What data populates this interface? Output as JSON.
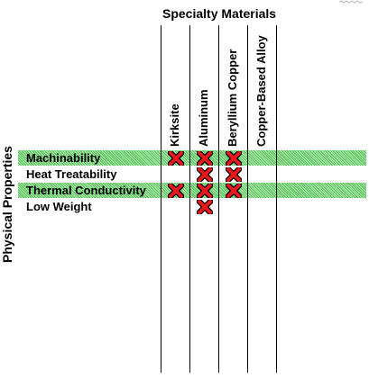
{
  "title": "Specialty Materials",
  "side_title": "Physical Properties",
  "columns": [
    {
      "label": "Kirksite"
    },
    {
      "label": "Aluminum"
    },
    {
      "label": "Beryllium Copper"
    },
    {
      "label": "Copper-Based Alloy"
    }
  ],
  "rows": [
    {
      "label": "Machinability",
      "highlight": true
    },
    {
      "label": "Heat Treatability",
      "highlight": false
    },
    {
      "label": "Thermal Conductivity",
      "highlight": true
    },
    {
      "label": "Low Weight",
      "highlight": false
    }
  ],
  "marks": [
    [
      true,
      true,
      true,
      false
    ],
    [
      false,
      true,
      true,
      false
    ],
    [
      true,
      true,
      true,
      false
    ],
    [
      false,
      true,
      false,
      false
    ]
  ],
  "colors": {
    "band": "#4fbf4f",
    "mark": "#e8181b",
    "mark_outline": "#000000"
  },
  "icons": {
    "mark": "x-mark-icon"
  }
}
